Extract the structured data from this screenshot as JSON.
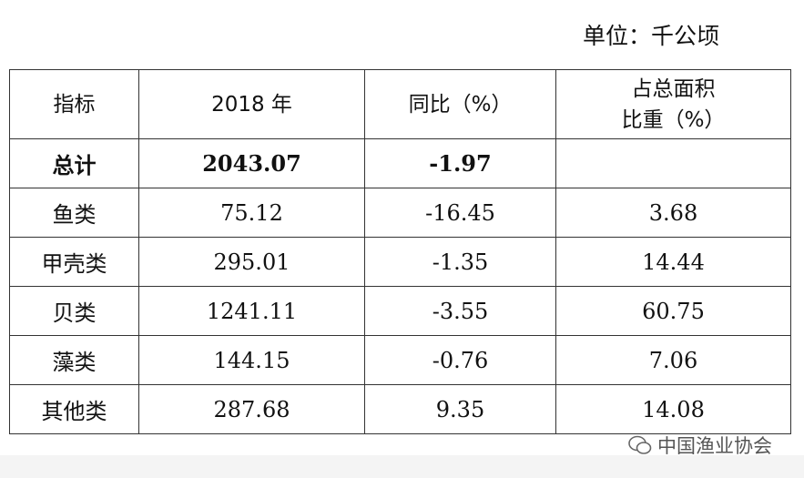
{
  "unit": "单位：千公顷",
  "table": {
    "header": [
      "指标",
      "2018 年",
      "同比（%）",
      [
        "占总面积",
        "比重（%）"
      ]
    ],
    "rows": [
      [
        "总计",
        "2043.07",
        "-1.97"
      ],
      [
        "鱼类",
        "75.12",
        "-16.45",
        "3.68"
      ],
      [
        "甲壳类",
        "295.01",
        "-1.35",
        "14.44"
      ],
      [
        "贝类",
        "1241.11",
        "-3.55",
        "60.75"
      ],
      [
        "藻类",
        "144.15",
        "-0.76",
        "7.06"
      ],
      [
        "其他类",
        "287.68",
        "9.35",
        "14.08"
      ]
    ]
  },
  "watermark": "中国渔业协会"
}
